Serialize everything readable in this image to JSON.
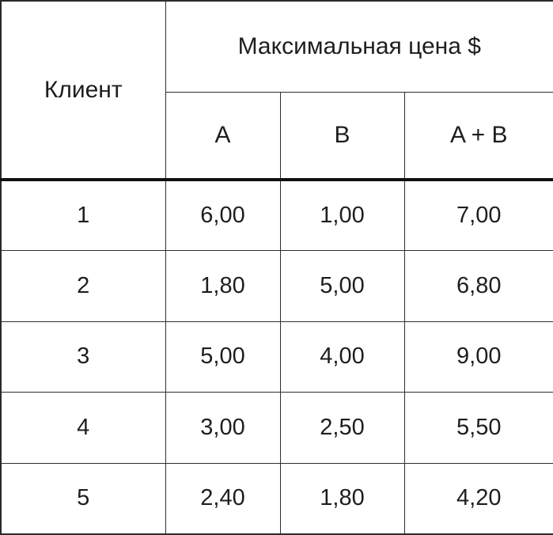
{
  "table": {
    "client_header": "Клиент",
    "price_header": "Максимальная цена $",
    "columns": {
      "a": "A",
      "b": "B",
      "ab": "A + B"
    },
    "rows": [
      {
        "client": "1",
        "a": "6,00",
        "b": "1,00",
        "ab": "7,00"
      },
      {
        "client": "2",
        "a": "1,80",
        "b": "5,00",
        "ab": "6,80"
      },
      {
        "client": "3",
        "a": "5,00",
        "b": "4,00",
        "ab": "9,00"
      },
      {
        "client": "4",
        "a": "3,00",
        "b": "2,50",
        "ab": "5,50"
      },
      {
        "client": "5",
        "a": "2,40",
        "b": "1,80",
        "ab": "4,20"
      }
    ]
  },
  "chart_data": {
    "type": "table",
    "title": "Максимальная цена $",
    "columns": [
      "Клиент",
      "A",
      "B",
      "A + B"
    ],
    "rows": [
      [
        "1",
        6.0,
        1.0,
        7.0
      ],
      [
        "2",
        1.8,
        5.0,
        6.8
      ],
      [
        "3",
        5.0,
        4.0,
        9.0
      ],
      [
        "4",
        3.0,
        2.5,
        5.5
      ],
      [
        "5",
        2.4,
        1.8,
        4.2
      ]
    ]
  },
  "colors": {
    "background": "#ffffff",
    "text": "#1e1e1e",
    "grid_border": "#2e2e2e",
    "thick_divider": "#101010"
  }
}
